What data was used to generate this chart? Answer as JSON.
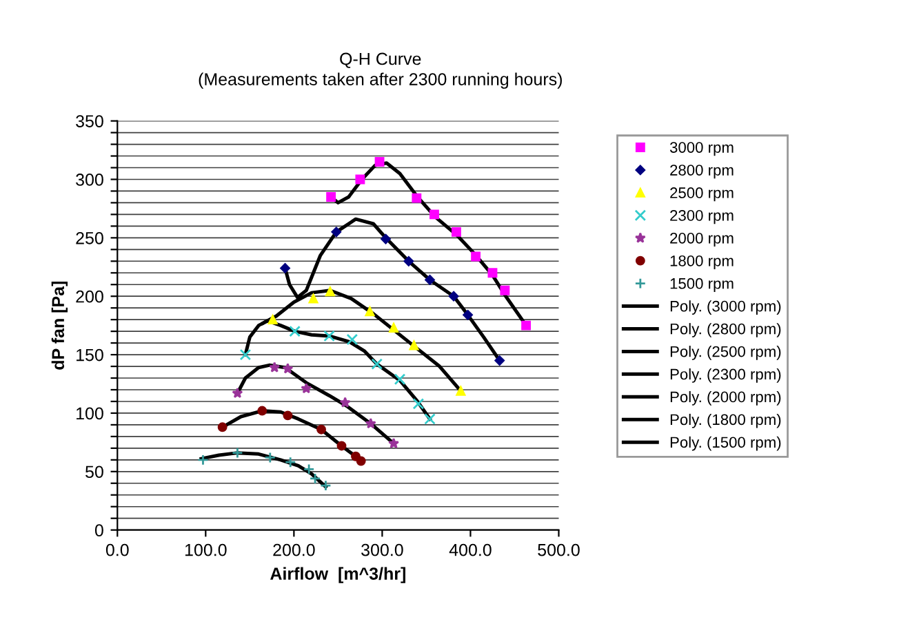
{
  "chart_data": {
    "type": "scatter",
    "title": "Q-H Curve",
    "subtitle": "(Measurements taken after 2300 running hours)",
    "xlabel": "Airflow  [m^3/hr]",
    "ylabel": "dP fan [Pa]",
    "xlim": [
      0,
      500
    ],
    "xticks": [
      {
        "value": 0,
        "label": "0.0"
      },
      {
        "value": 100,
        "label": "100.0"
      },
      {
        "value": 200,
        "label": "200.0"
      },
      {
        "value": 300,
        "label": "300.0"
      },
      {
        "value": 400,
        "label": "400.0"
      },
      {
        "value": 500,
        "label": "500.0"
      }
    ],
    "ylim": [
      0,
      350
    ],
    "yticks": [
      0,
      {
        "value": 10,
        "label": null
      },
      {
        "value": 20,
        "label": null
      },
      {
        "value": 30,
        "label": null
      },
      {
        "value": 40,
        "label": null
      },
      50,
      {
        "value": 60,
        "label": null
      },
      {
        "value": 70,
        "label": null
      },
      {
        "value": 80,
        "label": null
      },
      {
        "value": 90,
        "label": null
      },
      100,
      {
        "value": 110,
        "label": null
      },
      {
        "value": 120,
        "label": null
      },
      {
        "value": 130,
        "label": null
      },
      {
        "value": 140,
        "label": null
      },
      150,
      {
        "value": 160,
        "label": null
      },
      {
        "value": 170,
        "label": null
      },
      {
        "value": 180,
        "label": null
      },
      {
        "value": 190,
        "label": null
      },
      200,
      {
        "value": 210,
        "label": null
      },
      {
        "value": 220,
        "label": null
      },
      {
        "value": 230,
        "label": null
      },
      {
        "value": 240,
        "label": null
      },
      250,
      {
        "value": 260,
        "label": null
      },
      {
        "value": 270,
        "label": null
      },
      {
        "value": 280,
        "label": null
      },
      {
        "value": 290,
        "label": null
      },
      300,
      {
        "value": 310,
        "label": null
      },
      {
        "value": 320,
        "label": null
      },
      {
        "value": 330,
        "label": null
      },
      {
        "value": 340,
        "label": null
      },
      350
    ],
    "grid": "y",
    "legend": "right",
    "series": [
      {
        "name": "3000 rpm",
        "marker": "square",
        "color": "#ff00ff",
        "x": [
          242,
          275,
          297,
          339,
          359,
          384,
          406,
          425,
          439,
          463
        ],
        "values": [
          285,
          300,
          315,
          284,
          270,
          255,
          234,
          220,
          205,
          175
        ]
      },
      {
        "name": "2800 rpm",
        "marker": "diamond",
        "color": "#000080",
        "x": [
          190,
          248,
          304,
          330,
          354,
          381,
          397,
          433
        ],
        "values": [
          224,
          255,
          249,
          230,
          214,
          200,
          184,
          145
        ]
      },
      {
        "name": "2500 rpm",
        "marker": "triangle",
        "color": "#ffff00",
        "x": [
          176,
          222,
          241,
          286,
          313,
          336,
          389
        ],
        "values": [
          180,
          198,
          204,
          187,
          173,
          158,
          119
        ]
      },
      {
        "name": "2300 rpm",
        "marker": "cross",
        "color": "#33cccc",
        "x": [
          145,
          201,
          240,
          266,
          294,
          320,
          341,
          354
        ],
        "values": [
          150,
          170,
          166,
          163,
          142,
          129,
          108,
          95
        ]
      },
      {
        "name": "2000 rpm",
        "marker": "star",
        "color": "#993399",
        "x": [
          136,
          178,
          193,
          214,
          258,
          287,
          313
        ],
        "values": [
          117,
          139,
          138,
          121,
          109,
          91,
          74
        ]
      },
      {
        "name": "1800 rpm",
        "marker": "circle",
        "color": "#800000",
        "x": [
          119,
          164,
          193,
          231,
          254,
          270,
          276
        ],
        "values": [
          88,
          102,
          98,
          86,
          72,
          63,
          59
        ]
      },
      {
        "name": "1500 rpm",
        "marker": "plus",
        "color": "#339999",
        "x": [
          97,
          136,
          173,
          196,
          217,
          224,
          236
        ],
        "values": [
          60,
          66,
          62,
          58,
          52,
          44,
          38
        ]
      },
      {
        "name": "Poly. (3000 rpm)",
        "type": "line",
        "color": "#000000",
        "x": [
          242,
          250,
          262,
          277,
          292,
          305,
          320,
          340,
          360,
          385,
          405,
          425,
          440,
          463
        ],
        "values": [
          285,
          280,
          285,
          300,
          312,
          314,
          305,
          285,
          268,
          252,
          236,
          218,
          200,
          175
        ]
      },
      {
        "name": "Poly. (2800 rpm)",
        "type": "line",
        "color": "#000000",
        "x": [
          190,
          195,
          204,
          214,
          230,
          248,
          270,
          290,
          304,
          330,
          354,
          381,
          397,
          415,
          433
        ],
        "values": [
          224,
          210,
          199,
          205,
          235,
          255,
          266,
          262,
          250,
          230,
          214,
          200,
          184,
          165,
          145
        ]
      },
      {
        "name": "Poly. (2500 rpm)",
        "type": "line",
        "color": "#000000",
        "x": [
          165,
          180,
          200,
          220,
          241,
          265,
          290,
          315,
          340,
          365,
          389
        ],
        "values": [
          177,
          183,
          195,
          203,
          205,
          198,
          185,
          170,
          155,
          140,
          119
        ]
      },
      {
        "name": "Poly. (2300 rpm)",
        "type": "line",
        "color": "#000000",
        "x": [
          145,
          150,
          160,
          170,
          185,
          201,
          220,
          240,
          263,
          280,
          294,
          320,
          340,
          354
        ],
        "values": [
          150,
          165,
          175,
          179,
          175,
          170,
          167,
          166,
          161,
          153,
          142,
          128,
          110,
          95
        ]
      },
      {
        "name": "Poly. (2000 rpm)",
        "type": "line",
        "color": "#000000",
        "x": [
          136,
          145,
          160,
          172,
          190,
          214,
          240,
          260,
          287,
          313
        ],
        "values": [
          117,
          130,
          139,
          141,
          139,
          126,
          115,
          106,
          91,
          74
        ]
      },
      {
        "name": "Poly. (1800 rpm)",
        "type": "line",
        "color": "#000000",
        "x": [
          119,
          140,
          164,
          185,
          205,
          231,
          254,
          270,
          276
        ],
        "values": [
          88,
          97,
          102,
          101,
          95,
          86,
          72,
          63,
          59
        ]
      },
      {
        "name": "Poly. (1500 rpm)",
        "type": "line",
        "color": "#000000",
        "x": [
          95,
          115,
          136,
          160,
          185,
          205,
          220,
          236
        ],
        "values": [
          61,
          64,
          66,
          65,
          60,
          55,
          48,
          37
        ]
      }
    ]
  }
}
